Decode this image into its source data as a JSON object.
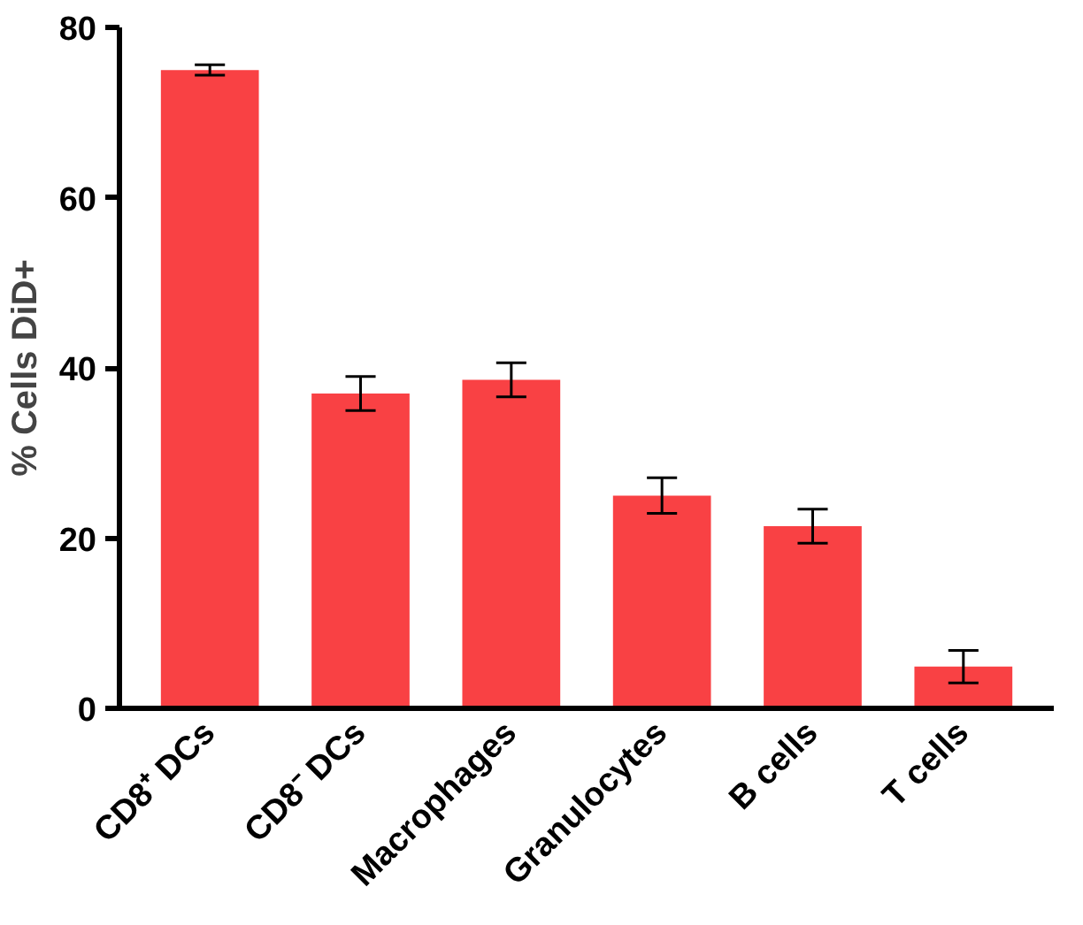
{
  "chart_data": {
    "type": "bar",
    "ylabel": "% Cells DiD+",
    "categories": [
      "CD8⁺ DCs",
      "CD8⁻ DCs",
      "Macrophages",
      "Granulocytes",
      "B cells",
      "T cells"
    ],
    "values": [
      75,
      37,
      38.6,
      25,
      21.4,
      4.9
    ],
    "errors": [
      0.6,
      2,
      2,
      2.1,
      2,
      1.9
    ],
    "color": "#f94144",
    "ylim": [
      0,
      80
    ],
    "yticks": [
      0,
      20,
      40,
      60,
      80
    ],
    "grid": false
  }
}
